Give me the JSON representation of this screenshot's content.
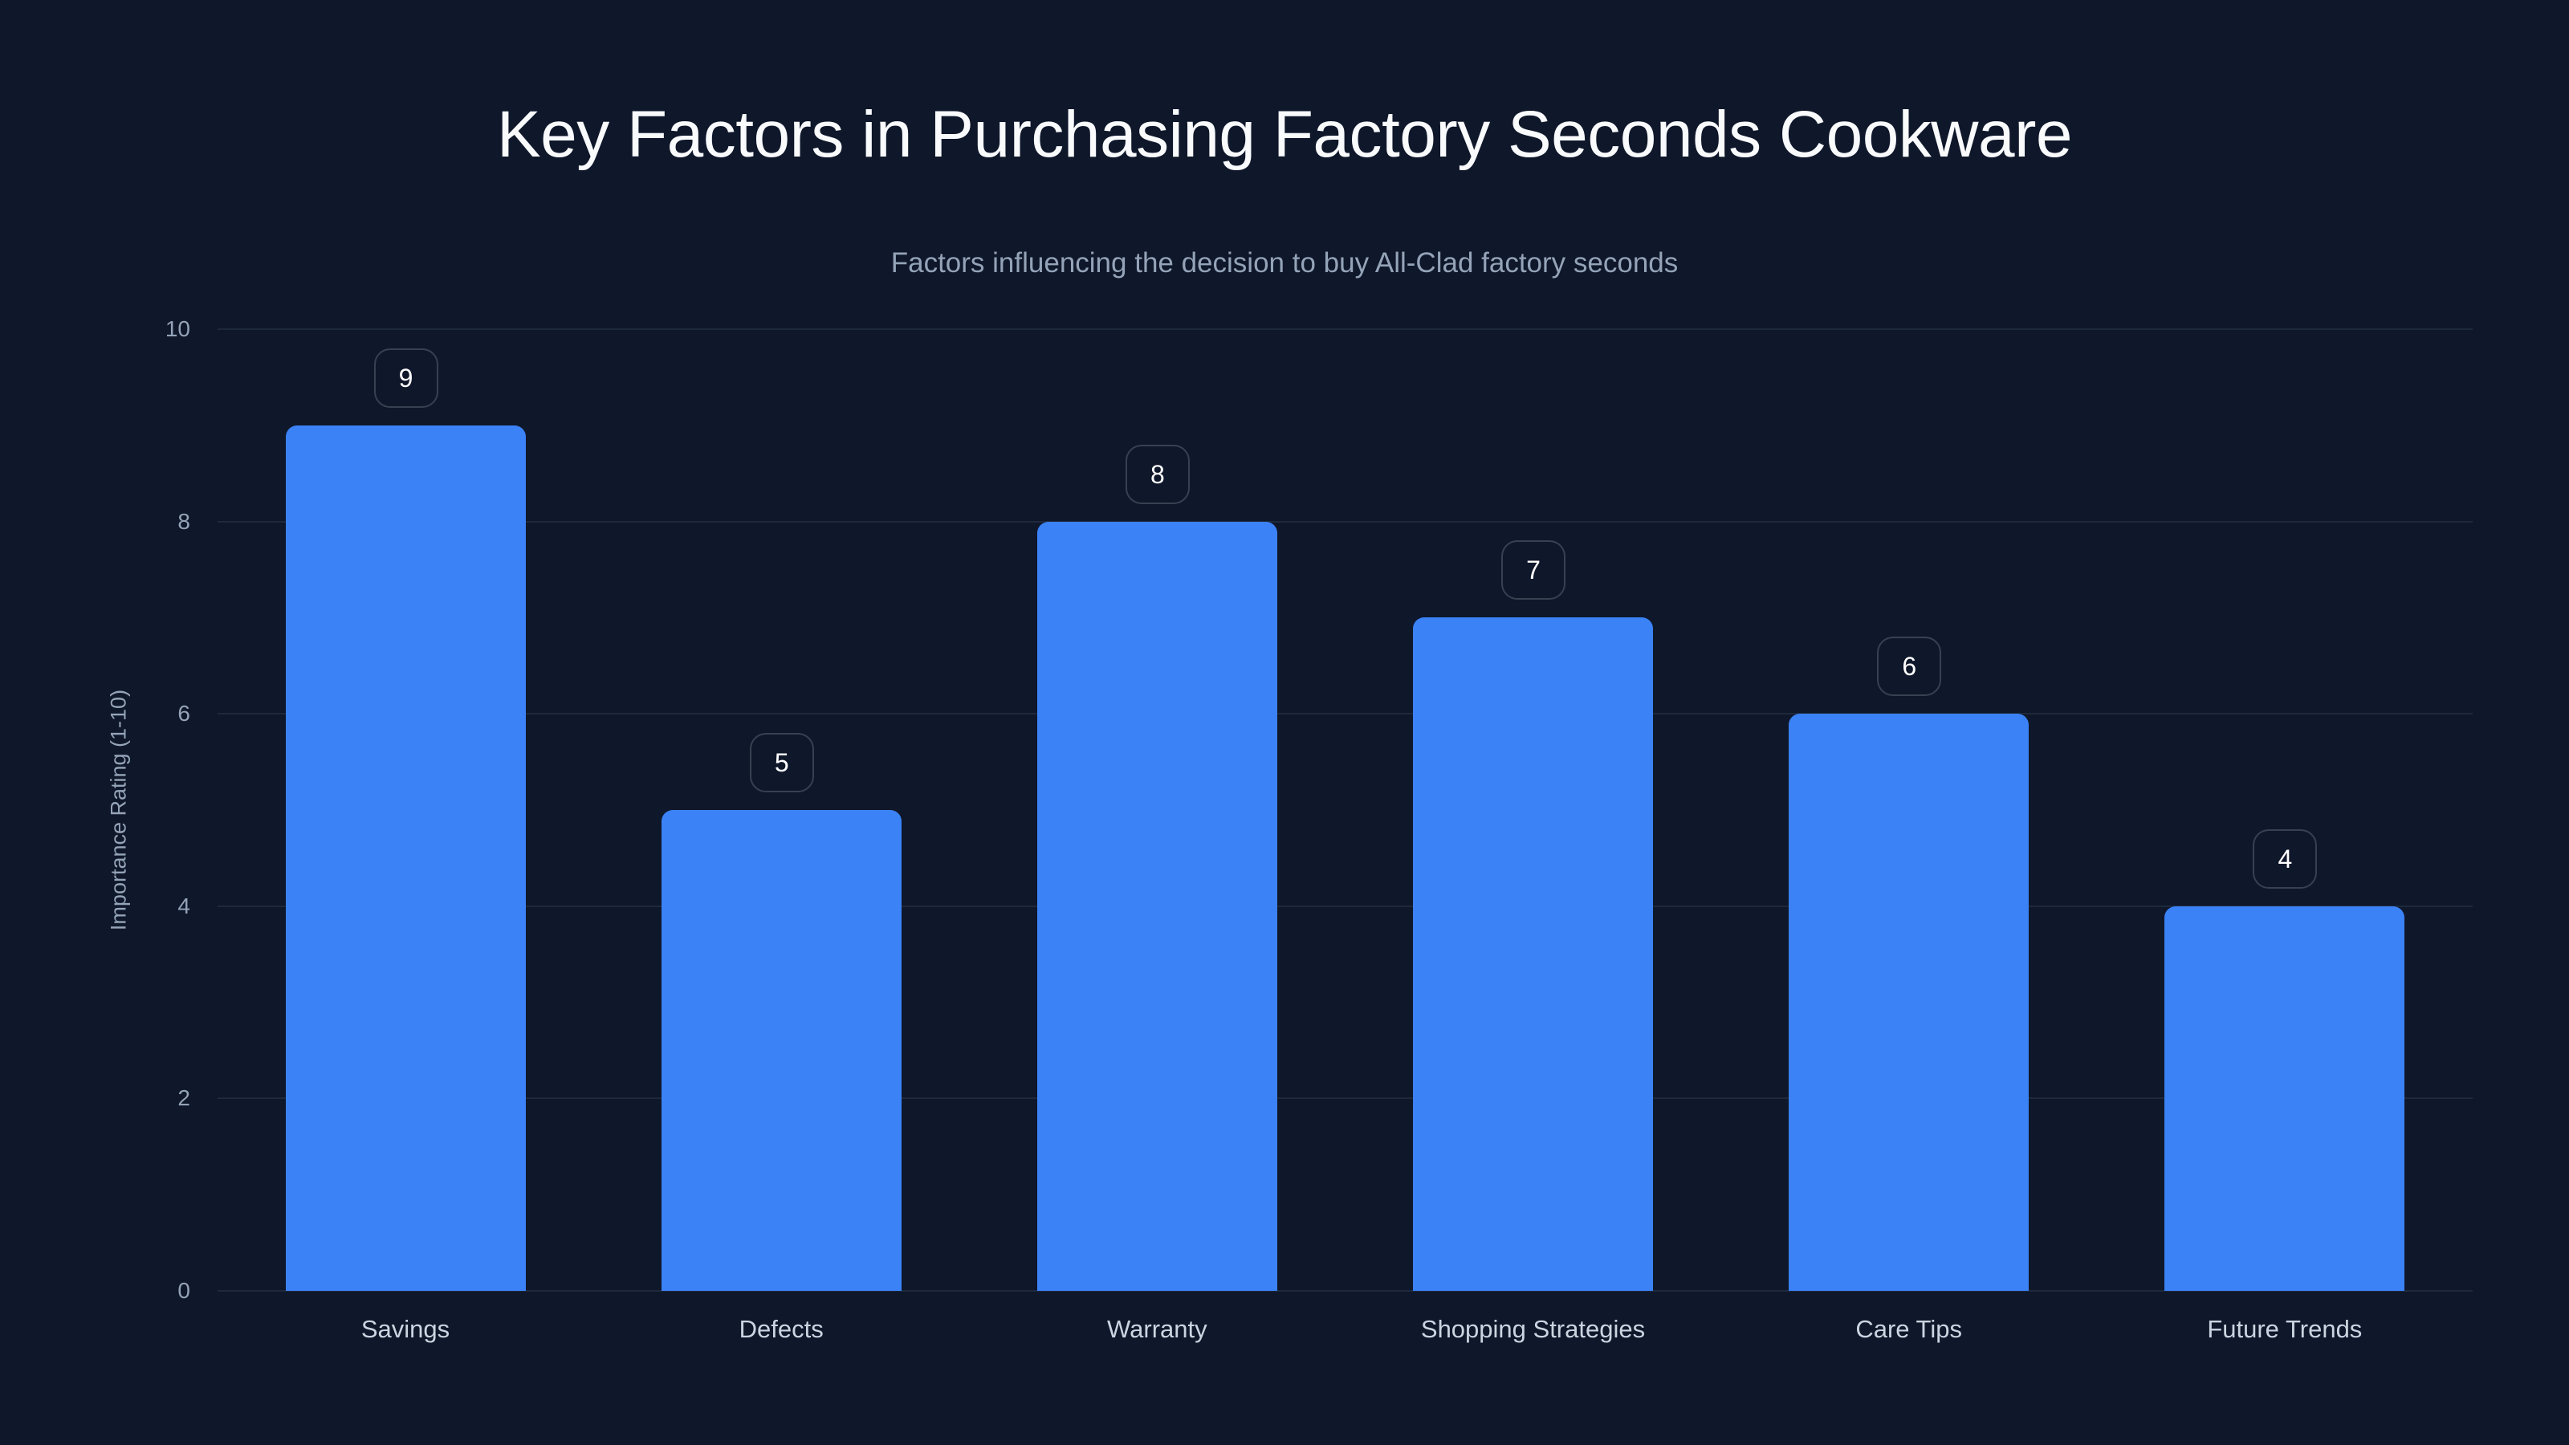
{
  "chart": {
    "title": "Key Factors in Purchasing Factory Seconds Cookware",
    "subtitle": "Factors influencing the decision to buy All-Clad factory seconds",
    "y_axis_title": "Importance Rating (1-10)",
    "y_ticks": [
      "0",
      "2",
      "4",
      "6",
      "8",
      "10"
    ],
    "bars": [
      {
        "label": "Savings",
        "value": 9,
        "value_text": "9"
      },
      {
        "label": "Defects",
        "value": 5,
        "value_text": "5"
      },
      {
        "label": "Warranty",
        "value": 8,
        "value_text": "8"
      },
      {
        "label": "Shopping Strategies",
        "value": 7,
        "value_text": "7"
      },
      {
        "label": "Care Tips",
        "value": 6,
        "value_text": "6"
      },
      {
        "label": "Future Trends",
        "value": 4,
        "value_text": "4"
      }
    ],
    "colors": {
      "background": "#0f172a",
      "bar": "#3b82f6",
      "gridline": "#1e293b",
      "title": "#f8fafc",
      "subtitle": "#94a3b8",
      "tick": "#94a3b8",
      "category_label": "#cbd5e1",
      "value_label_border": "#374151"
    }
  },
  "chart_data": {
    "type": "bar",
    "title": "Key Factors in Purchasing Factory Seconds Cookware",
    "subtitle": "Factors influencing the decision to buy All-Clad factory seconds",
    "categories": [
      "Savings",
      "Defects",
      "Warranty",
      "Shopping Strategies",
      "Care Tips",
      "Future Trends"
    ],
    "values": [
      9,
      5,
      8,
      7,
      6,
      4
    ],
    "xlabel": "",
    "ylabel": "Importance Rating (1-10)",
    "ylim": [
      0,
      10
    ],
    "yticks": [
      0,
      2,
      4,
      6,
      8,
      10
    ],
    "grid": true,
    "legend": null,
    "data_labels": true,
    "bar_color": "#3b82f6"
  }
}
